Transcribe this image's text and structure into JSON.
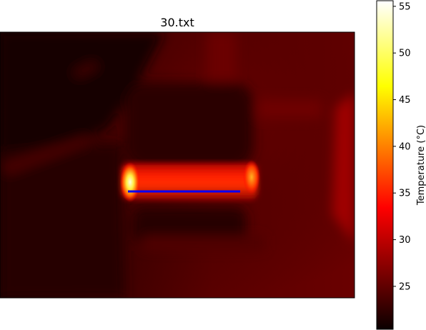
{
  "chart_data": {
    "type": "heatmap",
    "title": "30.txt",
    "colormap": "hot",
    "colorbar": {
      "label": "Temperature (°C)",
      "range": [
        20.4,
        55.6
      ],
      "ticks": [
        25,
        30,
        35,
        40,
        45,
        50,
        55
      ]
    },
    "axes_visible": false,
    "line_overlay": {
      "color": "#0000ff",
      "description": "horizontal measurement line"
    },
    "hot_spots": [
      {
        "region": "left end of bar",
        "temperature": 55
      },
      {
        "region": "right end of bar",
        "temperature": 42
      }
    ]
  }
}
